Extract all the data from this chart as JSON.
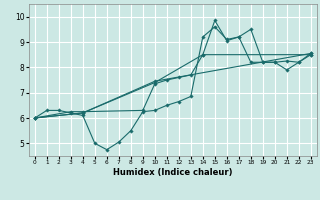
{
  "title": "",
  "xlabel": "Humidex (Indice chaleur)",
  "xlim": [
    -0.5,
    23.5
  ],
  "ylim": [
    4.5,
    10.5
  ],
  "xticks": [
    0,
    1,
    2,
    3,
    4,
    5,
    6,
    7,
    8,
    9,
    10,
    11,
    12,
    13,
    14,
    15,
    16,
    17,
    18,
    19,
    20,
    21,
    22,
    23
  ],
  "yticks": [
    5,
    6,
    7,
    8,
    9,
    10
  ],
  "bg_color": "#cce8e4",
  "line_color": "#1a6b6b",
  "grid_color": "#ffffff",
  "lines": [
    {
      "x": [
        0,
        1,
        2,
        3,
        4,
        5,
        6,
        7,
        8,
        9,
        10,
        11,
        12,
        13,
        14,
        15,
        16,
        17,
        18,
        19,
        20,
        21,
        22,
        23
      ],
      "y": [
        6.0,
        6.3,
        6.3,
        6.2,
        6.1,
        5.0,
        4.75,
        5.05,
        5.5,
        6.25,
        6.3,
        6.5,
        6.65,
        6.85,
        9.2,
        9.6,
        9.1,
        9.2,
        8.2,
        8.2,
        8.2,
        7.9,
        8.2,
        8.5
      ]
    },
    {
      "x": [
        0,
        3,
        4,
        9,
        10,
        11,
        12,
        13,
        14,
        15,
        16,
        17,
        18,
        19,
        20,
        21,
        22,
        23
      ],
      "y": [
        6.0,
        6.25,
        6.25,
        6.3,
        7.35,
        7.5,
        7.6,
        7.7,
        8.5,
        9.85,
        9.05,
        9.2,
        9.5,
        8.2,
        8.2,
        8.25,
        8.2,
        8.55
      ]
    },
    {
      "x": [
        0,
        4,
        10,
        14,
        23
      ],
      "y": [
        6.0,
        6.2,
        7.4,
        8.5,
        8.5
      ]
    },
    {
      "x": [
        0,
        4,
        10,
        23
      ],
      "y": [
        6.0,
        6.2,
        7.45,
        8.55
      ]
    }
  ]
}
